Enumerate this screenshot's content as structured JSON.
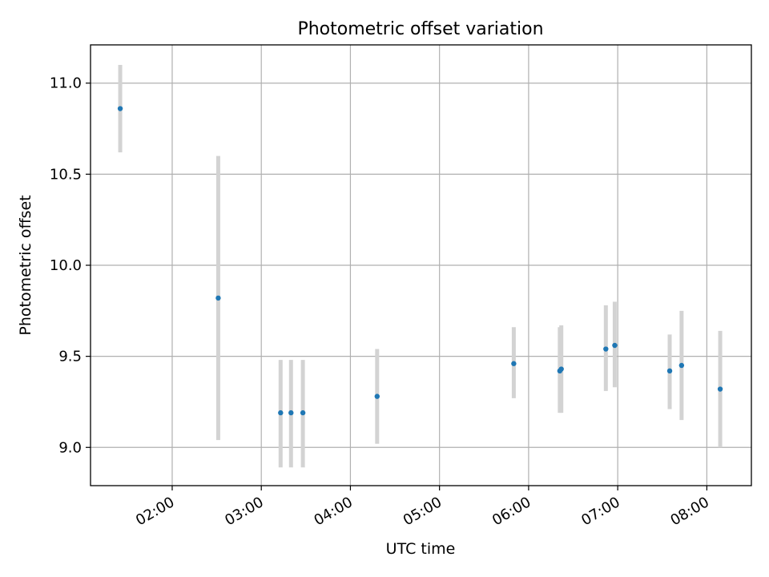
{
  "chart_data": {
    "type": "scatter",
    "title": "Photometric offset variation",
    "xlabel": "UTC time",
    "ylabel": "Photometric offset",
    "x_ticks": [
      "02:00",
      "03:00",
      "04:00",
      "05:00",
      "06:00",
      "07:00",
      "08:00"
    ],
    "y_ticks": [
      "9.0",
      "9.5",
      "10.0",
      "10.5",
      "11.0"
    ],
    "xlim": [
      "01:05",
      "08:30"
    ],
    "ylim": [
      8.79,
      11.21
    ],
    "grid": true,
    "legend": "none",
    "colors": {
      "point": "#1f77b4",
      "errorbar": "#d3d3d3",
      "grid": "#b0b0b0"
    },
    "points": [
      {
        "x": "01:25",
        "y": 10.86,
        "yerr_low": 10.62,
        "yerr_high": 11.1
      },
      {
        "x": "02:31",
        "y": 9.82,
        "yerr_low": 9.04,
        "yerr_high": 10.6
      },
      {
        "x": "03:13",
        "y": 9.19,
        "yerr_low": 8.89,
        "yerr_high": 9.48
      },
      {
        "x": "03:20",
        "y": 9.19,
        "yerr_low": 8.89,
        "yerr_high": 9.48
      },
      {
        "x": "03:28",
        "y": 9.19,
        "yerr_low": 8.89,
        "yerr_high": 9.48
      },
      {
        "x": "04:18",
        "y": 9.28,
        "yerr_low": 9.02,
        "yerr_high": 9.54
      },
      {
        "x": "05:50",
        "y": 9.46,
        "yerr_low": 9.27,
        "yerr_high": 9.66
      },
      {
        "x": "06:21",
        "y": 9.42,
        "yerr_low": 9.19,
        "yerr_high": 9.66
      },
      {
        "x": "06:22",
        "y": 9.43,
        "yerr_low": 9.19,
        "yerr_high": 9.67
      },
      {
        "x": "06:52",
        "y": 9.54,
        "yerr_low": 9.31,
        "yerr_high": 9.78
      },
      {
        "x": "06:58",
        "y": 9.56,
        "yerr_low": 9.33,
        "yerr_high": 9.8
      },
      {
        "x": "07:35",
        "y": 9.42,
        "yerr_low": 9.21,
        "yerr_high": 9.62
      },
      {
        "x": "07:43",
        "y": 9.45,
        "yerr_low": 9.15,
        "yerr_high": 9.75
      },
      {
        "x": "08:09",
        "y": 9.32,
        "yerr_low": 9.0,
        "yerr_high": 9.64
      }
    ]
  }
}
